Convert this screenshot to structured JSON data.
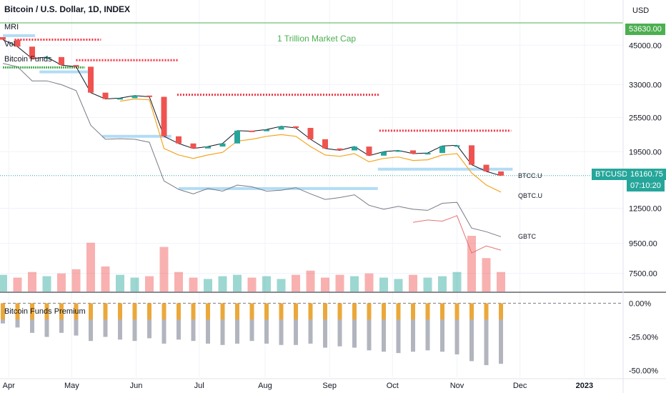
{
  "header": {
    "title": "Bitcoin / U.S. Dollar, 1D, INDEX",
    "currency": "USD"
  },
  "indicators": [
    "MRI",
    "Vol",
    "Bitcoin Funds"
  ],
  "annotation": "1 Trillion Market Cap",
  "pane2_title": "Bitcoin Funds Premium",
  "price_tags": {
    "market_cap_level": "53630.00",
    "symbol": "BTCUSD",
    "last_price": "16160.75",
    "countdown": "07:10:20"
  },
  "fund_labels": [
    "BTCC.U",
    "QBTC.U",
    "GBTC"
  ],
  "colors": {
    "up": "#26a69a",
    "down": "#ef5350",
    "btcc": "#f5a623",
    "qbtc": "#787b86",
    "marketcap_line": "#4caf50",
    "resistance": "#f23645",
    "support": "#b2dcf5",
    "tag_teal": "#26a69a",
    "tag_green": "#4caf50"
  },
  "chart_data": {
    "type": "line",
    "x": [
      "2022-03-29",
      "2022-04-05",
      "2022-04-12",
      "2022-04-19",
      "2022-04-26",
      "2022-05-03",
      "2022-05-10",
      "2022-05-17",
      "2022-05-24",
      "2022-05-31",
      "2022-06-07",
      "2022-06-14",
      "2022-06-21",
      "2022-06-28",
      "2022-07-05",
      "2022-07-12",
      "2022-07-19",
      "2022-07-26",
      "2022-08-02",
      "2022-08-09",
      "2022-08-16",
      "2022-08-23",
      "2022-08-30",
      "2022-09-06",
      "2022-09-13",
      "2022-09-20",
      "2022-09-27",
      "2022-10-04",
      "2022-10-11",
      "2022-10-18",
      "2022-10-25",
      "2022-11-01",
      "2022-11-08",
      "2022-11-15",
      "2022-11-22"
    ],
    "series": [
      {
        "name": "BTCUSD",
        "values": [
          47000,
          44500,
          40500,
          41000,
          38500,
          38000,
          31000,
          29500,
          29700,
          30300,
          30000,
          22000,
          20800,
          20000,
          20300,
          20800,
          23000,
          22900,
          23200,
          23800,
          23500,
          21500,
          20000,
          19700,
          20300,
          18900,
          19500,
          19700,
          19200,
          19300,
          20400,
          20500,
          17600,
          16700,
          16160
        ]
      },
      {
        "name": "BTCC.U",
        "values": [
          null,
          null,
          null,
          null,
          null,
          null,
          null,
          null,
          29000,
          29500,
          29300,
          20000,
          19000,
          18500,
          19000,
          19400,
          21200,
          21500,
          22000,
          22300,
          22000,
          20300,
          19000,
          18800,
          19200,
          18000,
          18500,
          18700,
          18200,
          18300,
          19000,
          19200,
          16500,
          15000,
          14200
        ]
      },
      {
        "name": "QBTC.U",
        "values": [
          39000,
          38000,
          34000,
          34000,
          33000,
          31500,
          24000,
          21500,
          21600,
          21500,
          21000,
          15500,
          14500,
          14000,
          14600,
          14300,
          15000,
          14800,
          14300,
          14400,
          14700,
          14000,
          13400,
          13600,
          13900,
          12800,
          12400,
          12700,
          12400,
          12300,
          13000,
          13100,
          10700,
          10400,
          10000
        ]
      },
      {
        "name": "GBTC",
        "values": [
          null,
          null,
          null,
          null,
          null,
          null,
          null,
          null,
          null,
          null,
          null,
          null,
          null,
          null,
          null,
          null,
          null,
          null,
          null,
          null,
          null,
          null,
          null,
          null,
          null,
          null,
          null,
          null,
          11200,
          11400,
          11300,
          11800,
          8800,
          9300,
          9000
        ]
      }
    ],
    "premium": {
      "name": "Bitcoin Funds Premium",
      "values": [
        -15,
        -18,
        -22,
        -25,
        -22,
        -24,
        -28,
        -25,
        -27,
        -28,
        -26,
        -30,
        -27,
        -28,
        -30,
        -31,
        -30,
        -28,
        -30,
        -31,
        -31,
        -30,
        -33,
        -32,
        -33,
        -35,
        -36,
        -37,
        -36,
        -35,
        -36,
        -38,
        -43,
        -46,
        -45
      ]
    },
    "volume": {
      "name": "Vol",
      "values": [
        12,
        10,
        14,
        11,
        13,
        16,
        35,
        18,
        12,
        10,
        11,
        32,
        14,
        10,
        9,
        11,
        12,
        10,
        11,
        9,
        12,
        15,
        10,
        12,
        11,
        13,
        10,
        9,
        12,
        10,
        11,
        14,
        40,
        24,
        14
      ]
    },
    "yaxis_ticks": [
      "45000.00",
      "33000.00",
      "25500.00",
      "19500.00",
      "12500.00",
      "9500.00",
      "7500.00"
    ],
    "premium_ticks": [
      "0.00%",
      "-25.00%",
      "-50.00%"
    ],
    "xaxis_ticks": [
      "Apr",
      "May",
      "Jun",
      "Jul",
      "Aug",
      "Sep",
      "Oct",
      "Nov",
      "Dec",
      "2023"
    ],
    "ylim": [
      6800,
      60000
    ],
    "premium_ylim": [
      -55,
      5
    ],
    "yscale": "log"
  }
}
